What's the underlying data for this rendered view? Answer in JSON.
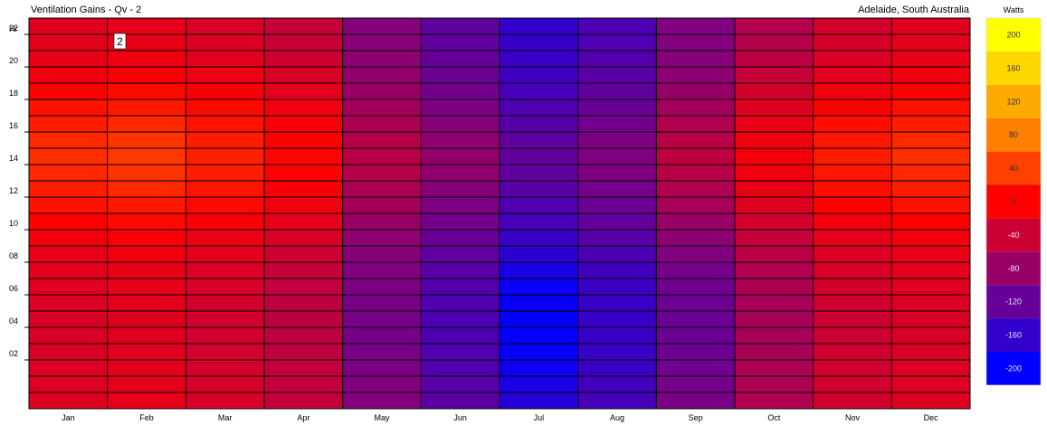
{
  "chart_data": {
    "type": "heatmap",
    "title": "Ventilation Gains - Qv - 2",
    "location": "Adelaide, South Australia",
    "ylabel": "Hr",
    "y_tick_labels": [
      "22",
      "20",
      "18",
      "16",
      "14",
      "12",
      "10",
      "08",
      "06",
      "04",
      "02"
    ],
    "y_tick_values": [
      22,
      20,
      18,
      16,
      14,
      12,
      10,
      8,
      6,
      4,
      2
    ],
    "hours": [
      23,
      22,
      21,
      20,
      19,
      18,
      17,
      16,
      15,
      14,
      13,
      12,
      11,
      10,
      9,
      8,
      7,
      6,
      5,
      4,
      3,
      2,
      1,
      0
    ],
    "months": [
      "Jan",
      "Feb",
      "Mar",
      "Apr",
      "May",
      "Jun",
      "Jul",
      "Aug",
      "Sep",
      "Oct",
      "Nov",
      "Dec"
    ],
    "annotation": "2",
    "legend": {
      "title": "Watts",
      "labels": [
        "200",
        "160",
        "120",
        "80",
        "40",
        "0",
        "-40",
        "-80",
        "-120",
        "-160",
        "-200"
      ],
      "colors": [
        "#ffff00",
        "#ffd700",
        "#ffaa00",
        "#ff8000",
        "#ff4000",
        "#ff0000",
        "#cc0033",
        "#990066",
        "#660099",
        "#3300cc",
        "#0000ff"
      ],
      "range": [
        -200,
        200
      ]
    },
    "values": [
      [
        -25,
        -20,
        -30,
        -45,
        -95,
        -125,
        -160,
        -140,
        -100,
        -60,
        -35,
        -25
      ],
      [
        -22,
        -18,
        -28,
        -42,
        -93,
        -123,
        -158,
        -138,
        -98,
        -58,
        -33,
        -22
      ],
      [
        -18,
        -12,
        -22,
        -38,
        -90,
        -120,
        -155,
        -135,
        -95,
        -52,
        -28,
        -18
      ],
      [
        -10,
        -5,
        -15,
        -30,
        -85,
        -115,
        -150,
        -130,
        -90,
        -45,
        -22,
        -10
      ],
      [
        0,
        5,
        -5,
        -22,
        -80,
        -110,
        -145,
        -125,
        -82,
        -35,
        -12,
        0
      ],
      [
        10,
        15,
        5,
        -12,
        -72,
        -102,
        -138,
        -118,
        -72,
        -25,
        -2,
        10
      ],
      [
        18,
        25,
        12,
        -5,
        -65,
        -95,
        -132,
        -110,
        -62,
        -18,
        8,
        18
      ],
      [
        25,
        32,
        18,
        0,
        -58,
        -88,
        -125,
        -102,
        -55,
        -12,
        14,
        25
      ],
      [
        28,
        35,
        20,
        2,
        -55,
        -85,
        -122,
        -100,
        -50,
        -8,
        18,
        28
      ],
      [
        25,
        32,
        18,
        0,
        -58,
        -88,
        -125,
        -102,
        -55,
        -12,
        14,
        25
      ],
      [
        18,
        25,
        12,
        -5,
        -65,
        -95,
        -130,
        -108,
        -62,
        -18,
        8,
        18
      ],
      [
        10,
        15,
        5,
        -12,
        -72,
        -102,
        -138,
        -115,
        -70,
        -25,
        0,
        10
      ],
      [
        0,
        5,
        -5,
        -20,
        -80,
        -110,
        -145,
        -122,
        -80,
        -35,
        -10,
        0
      ],
      [
        -10,
        -5,
        -15,
        -30,
        -88,
        -118,
        -155,
        -132,
        -90,
        -45,
        -20,
        -10
      ],
      [
        -18,
        -12,
        -22,
        -40,
        -95,
        -125,
        -165,
        -140,
        -100,
        -55,
        -28,
        -18
      ],
      [
        -22,
        -18,
        -28,
        -45,
        -100,
        -130,
        -180,
        -148,
        -108,
        -62,
        -32,
        -22
      ],
      [
        -25,
        -20,
        -32,
        -48,
        -102,
        -135,
        -192,
        -152,
        -112,
        -65,
        -35,
        -25
      ],
      [
        -28,
        -22,
        -35,
        -50,
        -105,
        -138,
        -195,
        -155,
        -115,
        -68,
        -38,
        -28
      ],
      [
        -30,
        -25,
        -36,
        -52,
        -106,
        -140,
        -198,
        -156,
        -116,
        -70,
        -40,
        -30
      ],
      [
        -30,
        -25,
        -36,
        -52,
        -106,
        -140,
        -198,
        -156,
        -116,
        -70,
        -40,
        -30
      ],
      [
        -30,
        -24,
        -35,
        -50,
        -105,
        -138,
        -195,
        -155,
        -115,
        -68,
        -38,
        -30
      ],
      [
        -28,
        -22,
        -34,
        -48,
        -103,
        -136,
        -190,
        -152,
        -112,
        -66,
        -36,
        -28
      ],
      [
        -27,
        -21,
        -32,
        -47,
        -100,
        -132,
        -180,
        -148,
        -108,
        -64,
        -36,
        -27
      ],
      [
        -26,
        -20,
        -31,
        -46,
        -98,
        -128,
        -170,
        -145,
        -104,
        -62,
        -35,
        -26
      ]
    ]
  }
}
